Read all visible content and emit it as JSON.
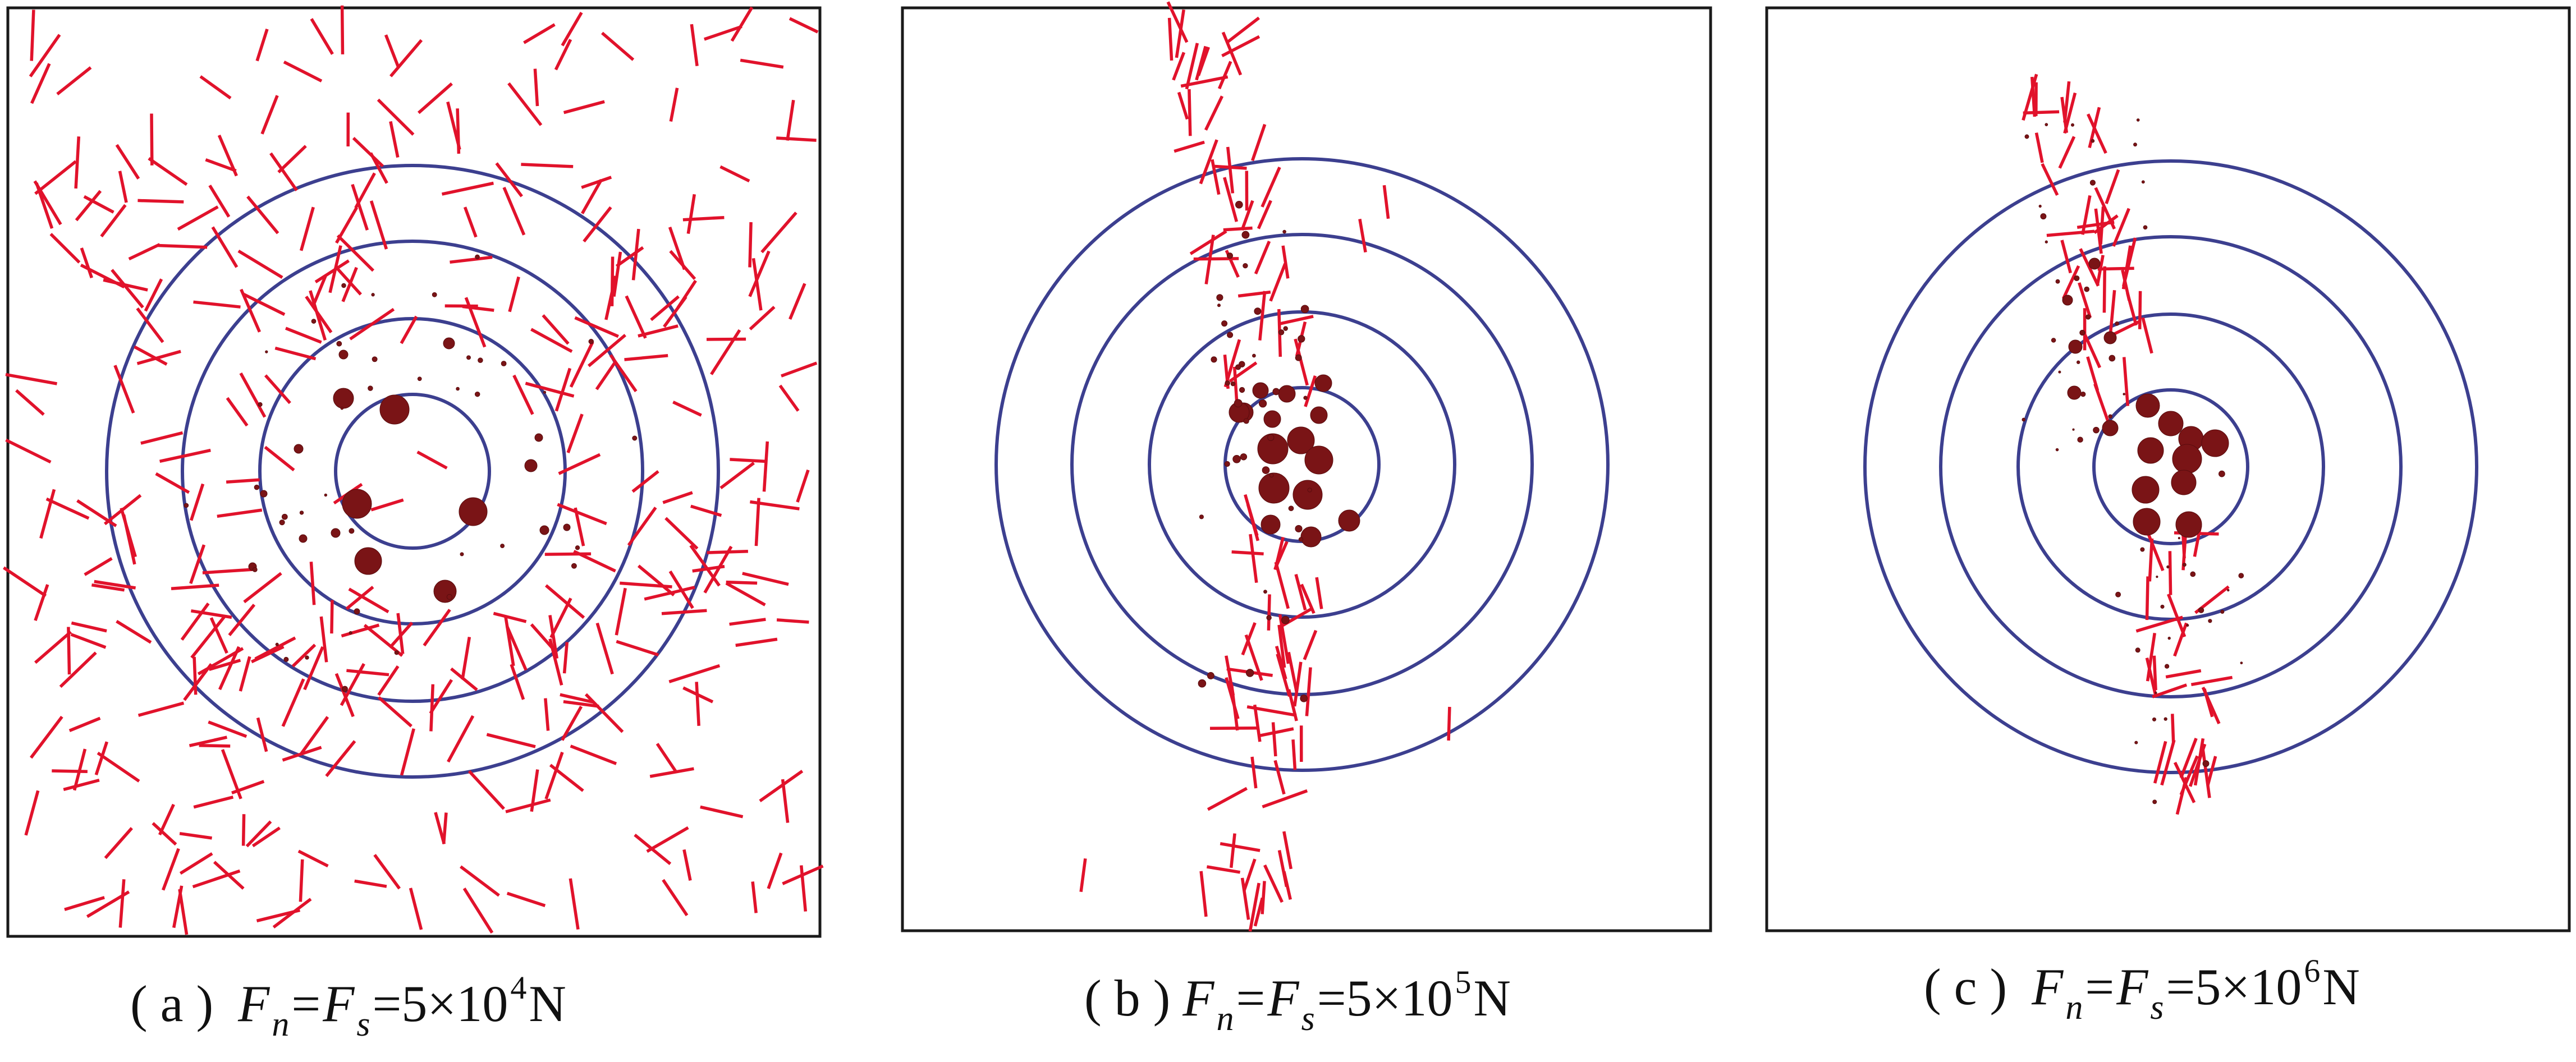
{
  "figure": {
    "panels": [
      {
        "id": "a",
        "caption": {
          "open": "( a )",
          "var1": "F",
          "sub1": "n",
          "eq1": "=",
          "var2": "F",
          "sub2": "s",
          "eq2": "=5×10",
          "exp": "4",
          "unit": " N"
        }
      },
      {
        "id": "b",
        "caption": {
          "open": "( b )",
          "var1": "F",
          "sub1": "n",
          "eq1": "=",
          "var2": "F",
          "sub2": "s",
          "eq2": "=5×10",
          "exp": "5",
          "unit": " N"
        }
      },
      {
        "id": "c",
        "caption": {
          "open": "( c )",
          "var1": "F",
          "sub1": "n",
          "eq1": "=",
          "var2": "F",
          "sub2": "s",
          "eq2": "=5×10",
          "exp": "6",
          "unit": " N"
        }
      }
    ],
    "colors": {
      "ring": "#3c3f8f",
      "crack": "#e1122b",
      "particle": "#7a1416",
      "frame": "#1a1a1a"
    }
  }
}
